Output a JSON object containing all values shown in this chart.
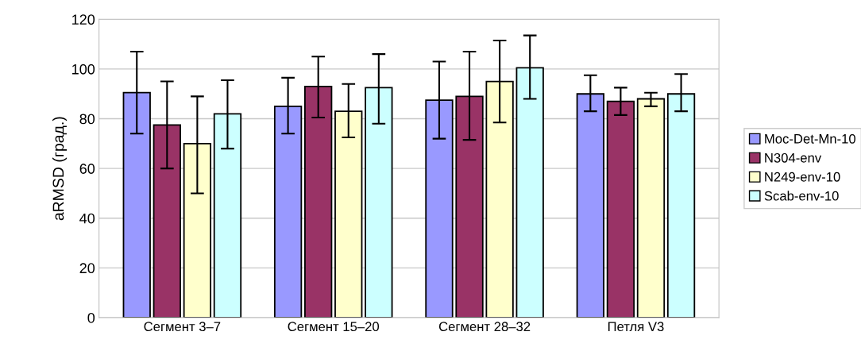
{
  "chart_data": {
    "type": "bar",
    "ylabel": "aRMSD (град.)",
    "categories": [
      "Сегмент 3–7",
      "Сегмент 15–20",
      "Сегмент 28–32",
      "Петля V3"
    ],
    "series": [
      {
        "name": "Moc-Det-Mn-10",
        "color": "#9999ff",
        "values": [
          90.5,
          85,
          87.5,
          90
        ],
        "errors": [
          [
            74,
            107
          ],
          [
            74,
            96.5
          ],
          [
            72,
            103
          ],
          [
            83,
            97.5
          ]
        ]
      },
      {
        "name": "N304-env",
        "color": "#993366",
        "values": [
          77.5,
          93,
          89,
          87
        ],
        "errors": [
          [
            60,
            95
          ],
          [
            80.5,
            105
          ],
          [
            71.5,
            107
          ],
          [
            81.5,
            92.5
          ]
        ]
      },
      {
        "name": "N249-env-10",
        "color": "#ffffcc",
        "values": [
          70,
          83,
          95,
          88
        ],
        "errors": [
          [
            50,
            89
          ],
          [
            72.5,
            94
          ],
          [
            78.5,
            111.5
          ],
          [
            85,
            90.5
          ]
        ]
      },
      {
        "name": "Scab-env-10",
        "color": "#ccffff",
        "values": [
          82,
          92.5,
          100.5,
          90
        ],
        "errors": [
          [
            68,
            95.5
          ],
          [
            78,
            106
          ],
          [
            88,
            113.5
          ],
          [
            83,
            98
          ]
        ]
      }
    ],
    "ylim": [
      0,
      120
    ],
    "yticks": [
      0,
      20,
      40,
      60,
      80,
      100,
      120
    ],
    "grid": "y",
    "legend": "right"
  }
}
